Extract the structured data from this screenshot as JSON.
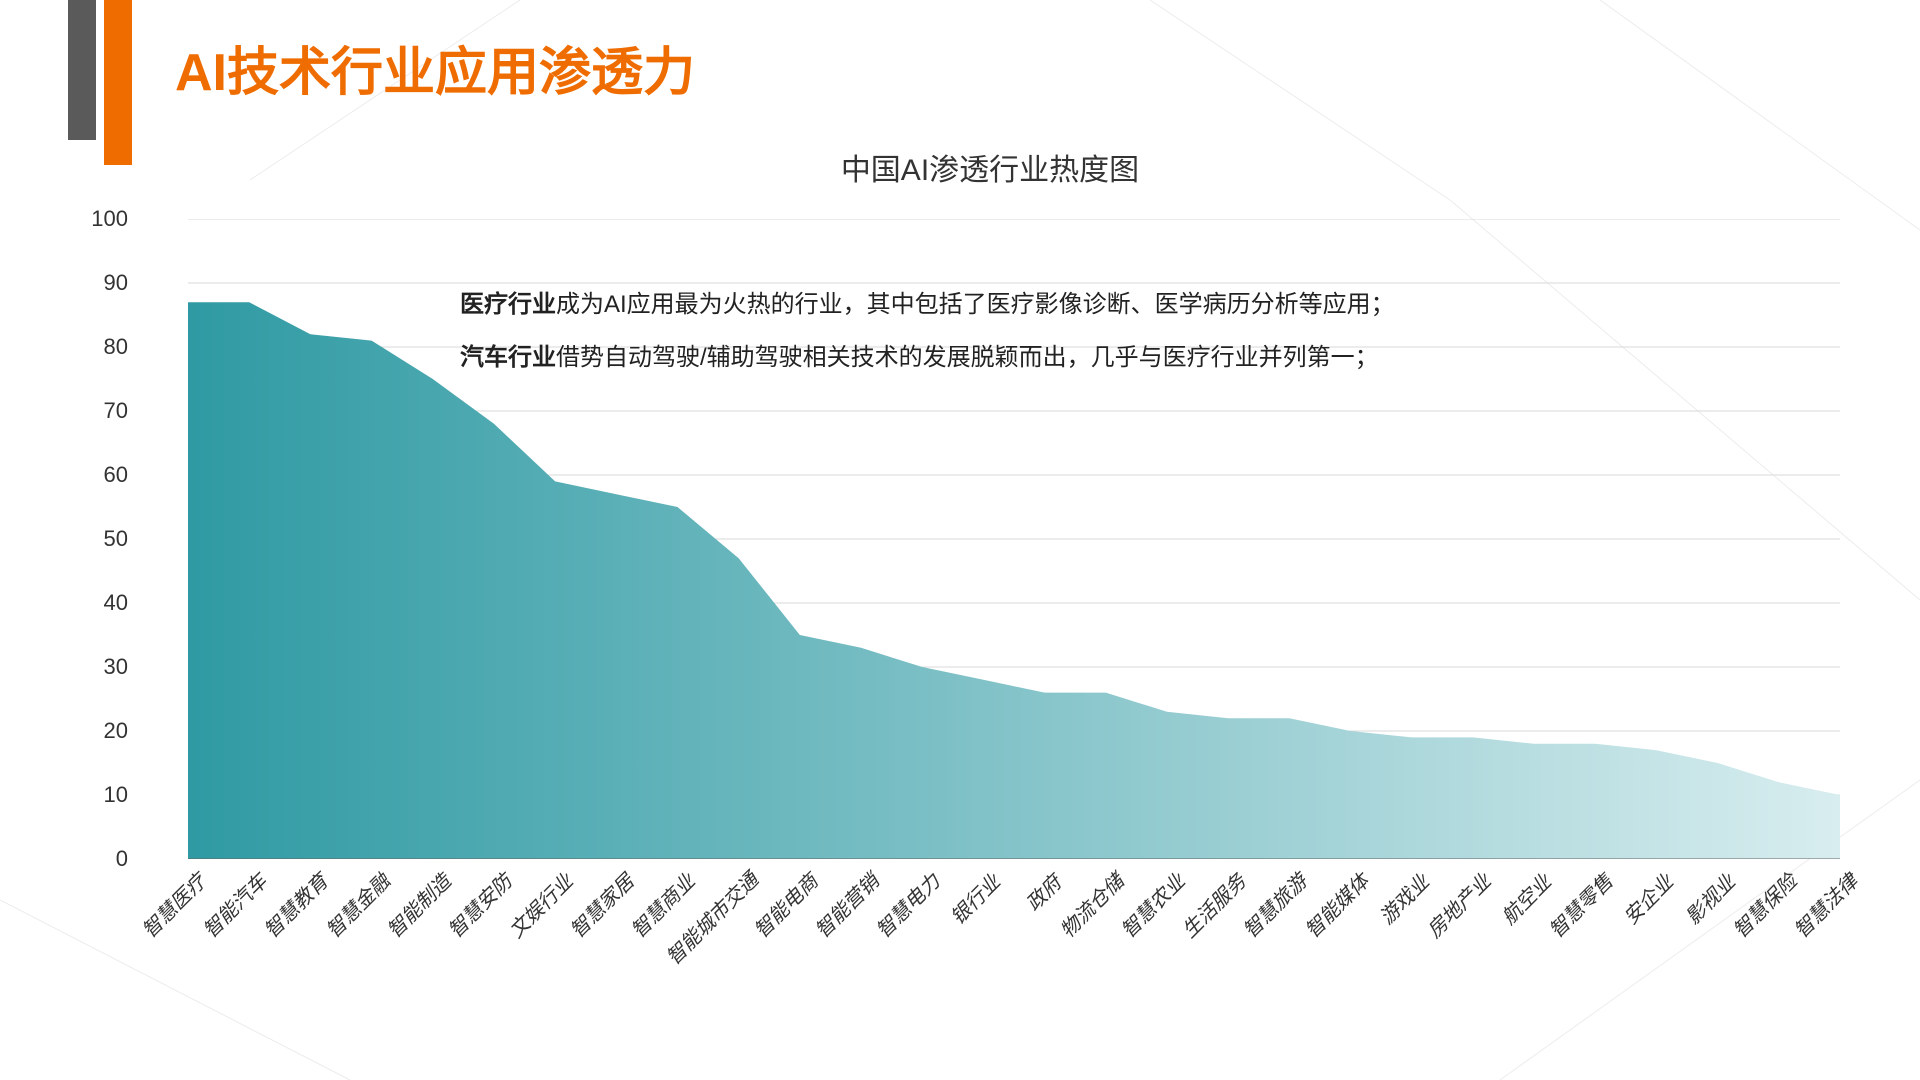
{
  "header": {
    "title": "AI技术行业应用渗透力",
    "bar_gray_color": "#5a5a5a",
    "bar_orange_color": "#ef6c00",
    "title_color": "#ef6c00",
    "title_fontsize": 52
  },
  "chart": {
    "type": "area",
    "title": "中国AI渗透行业热度图",
    "title_fontsize": 30,
    "title_color": "#333333",
    "ylim": [
      0,
      100
    ],
    "ytick_step": 10,
    "y_label_fontsize": 22,
    "x_label_fontsize": 20,
    "x_label_rotation": -45,
    "grid_color": "#d9d9d9",
    "axis_color": "#666666",
    "background_color": "#ffffff",
    "area_gradient_start": "#2f9aa3",
    "area_gradient_end": "#d8edef",
    "categories": [
      "智慧医疗",
      "智能汽车",
      "智慧教育",
      "智慧金融",
      "智能制造",
      "智慧安防",
      "文娱行业",
      "智慧家居",
      "智慧商业",
      "智能城市交通",
      "智能电商",
      "智能营销",
      "智慧电力",
      "银行业",
      "政府",
      "物流仓储",
      "智慧农业",
      "生活服务",
      "智慧旅游",
      "智能媒体",
      "游戏业",
      "房地产业",
      "航空业",
      "智慧零售",
      "安企业",
      "影视业",
      "智慧保险",
      "智慧法律"
    ],
    "values": [
      87,
      87,
      82,
      81,
      75,
      68,
      59,
      57,
      55,
      47,
      35,
      33,
      30,
      28,
      26,
      26,
      23,
      22,
      22,
      20,
      19,
      19,
      18,
      18,
      17,
      15,
      12,
      10
    ],
    "annotations": [
      {
        "bold": "医疗行业",
        "rest": "成为AI应用最为火热的行业，其中包括了医疗影像诊断、医学病历分析等应用；"
      },
      {
        "bold": "汽车行业",
        "rest": "借势自动驾驶/辅助驾驶相关技术的发展脱颖而出，几乎与医疗行业并列第一；"
      }
    ],
    "annotation_fontsize": 24,
    "annotation_color": "#222222"
  },
  "bg_line_color": "#ececec"
}
